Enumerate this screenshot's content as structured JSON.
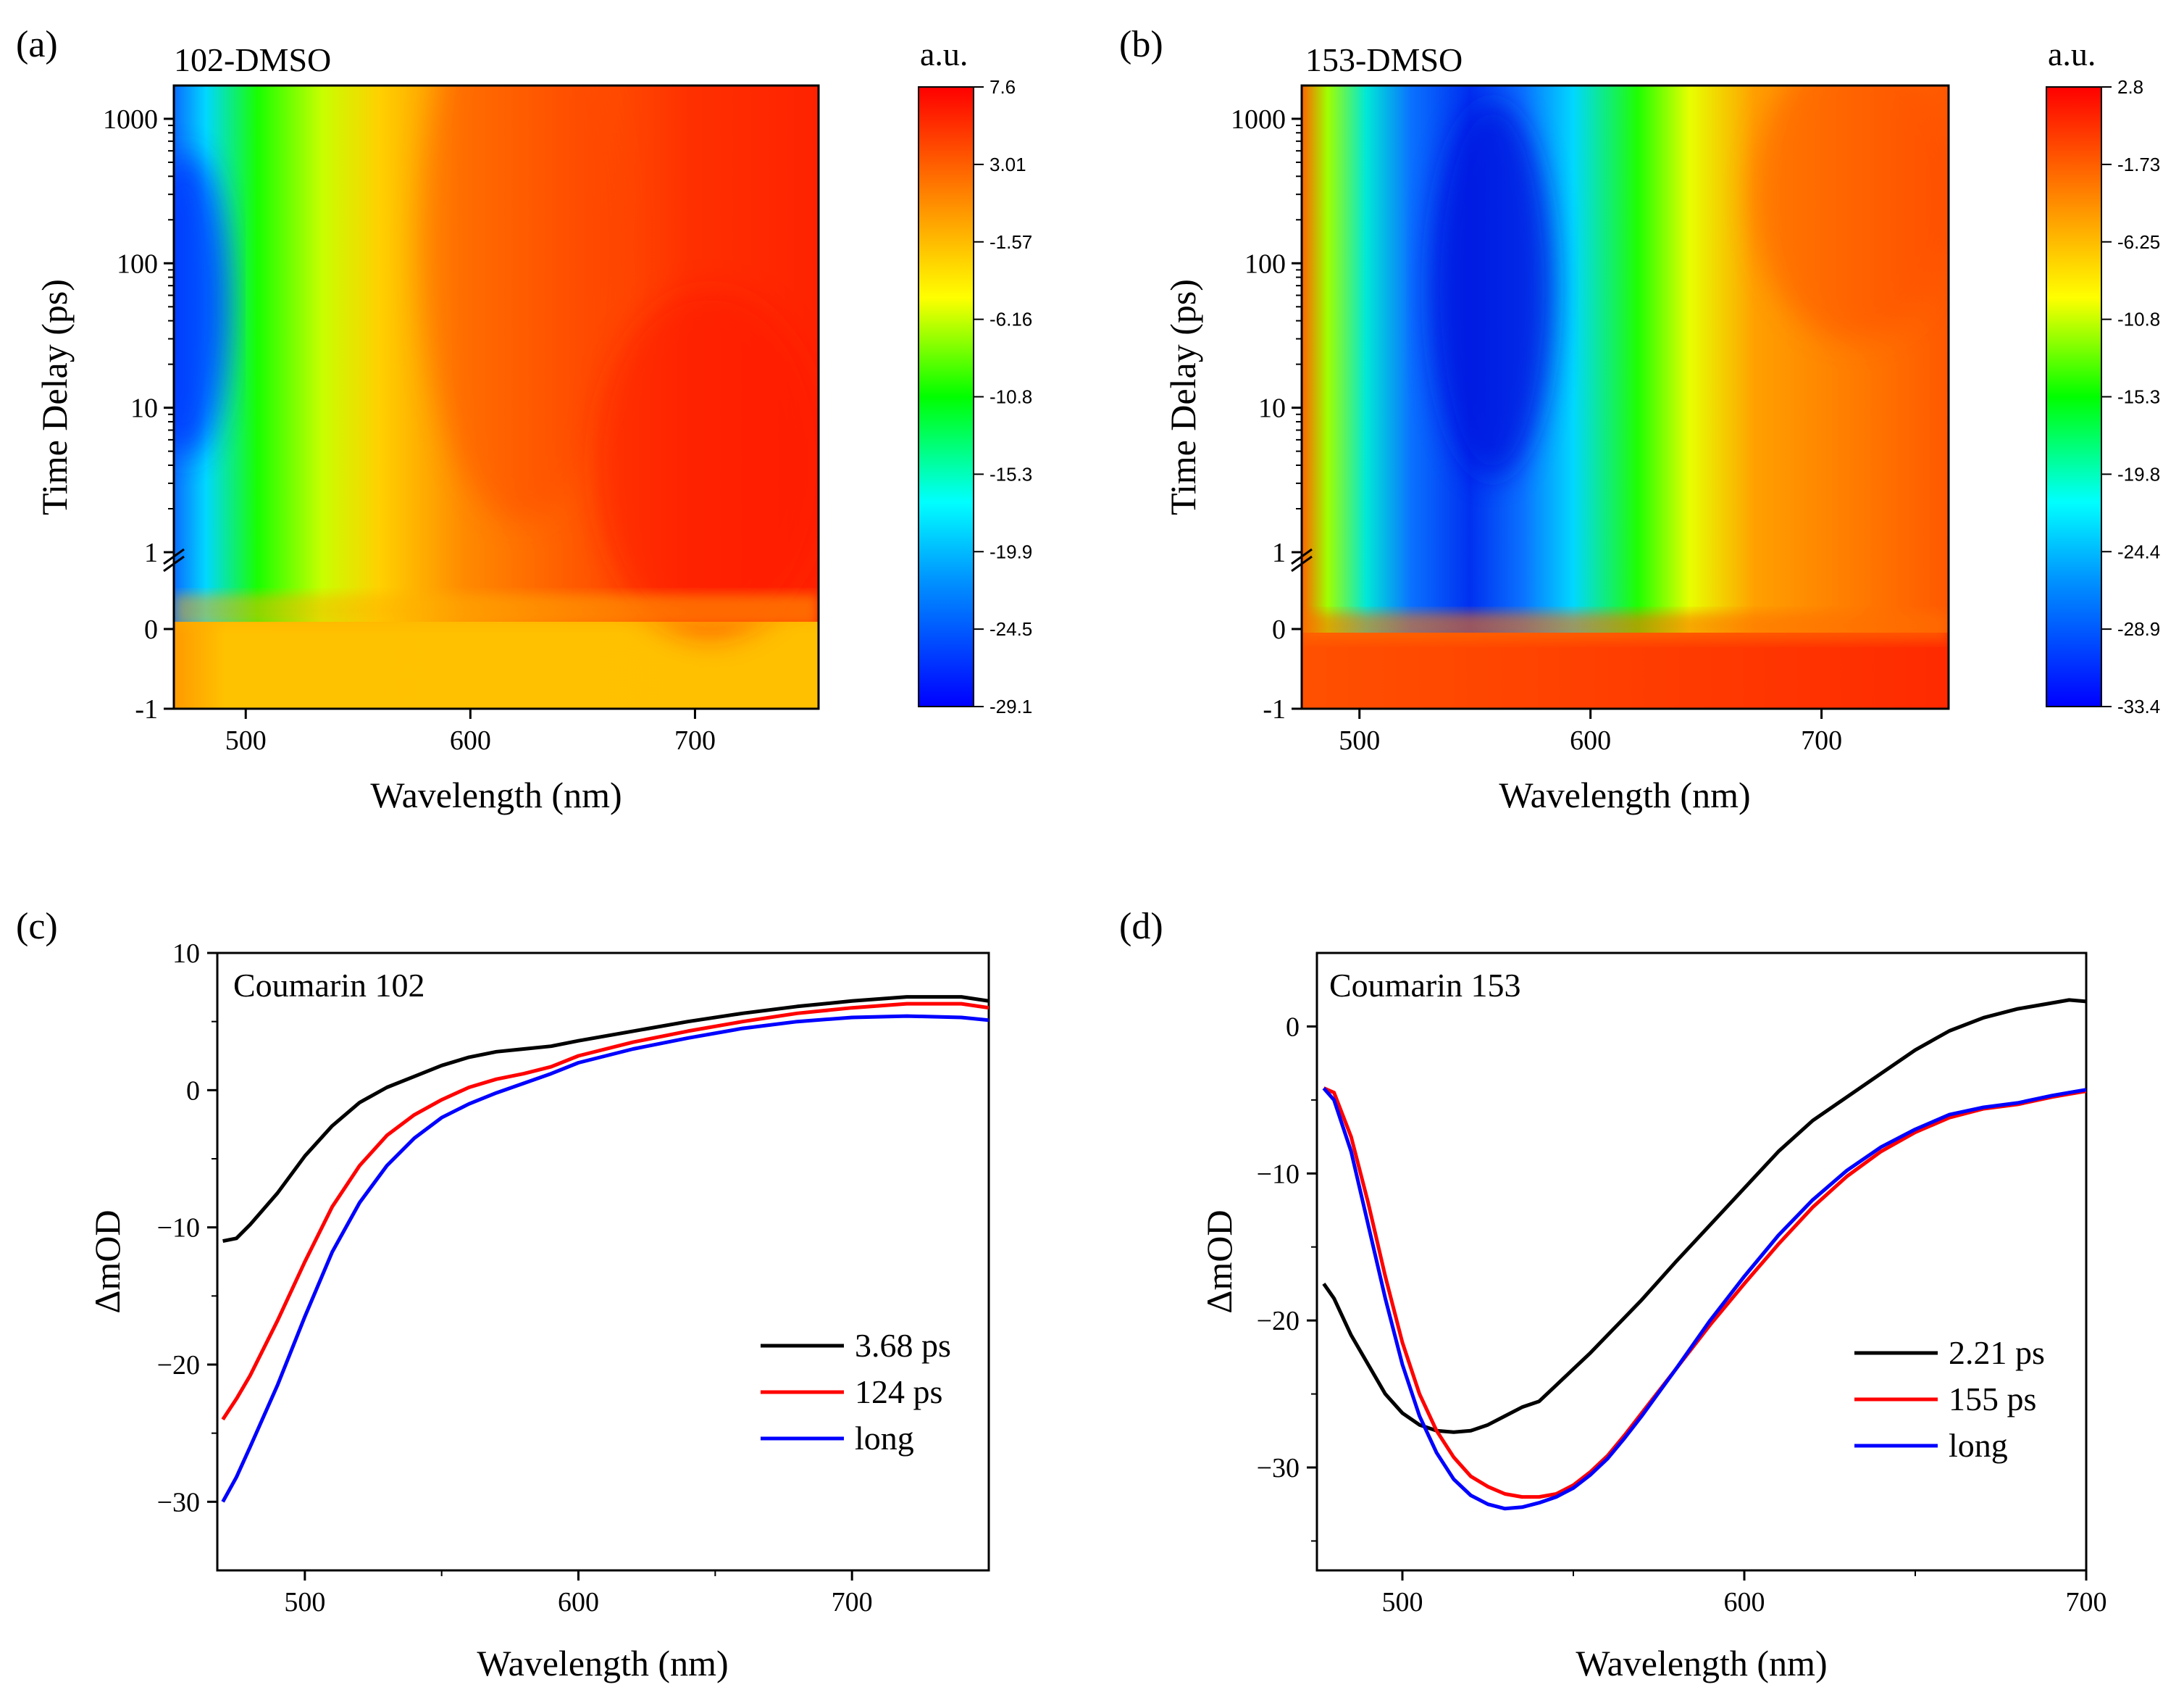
{
  "figure": {
    "panels": [
      {
        "id": "a",
        "label": "(a)"
      },
      {
        "id": "b",
        "label": "(b)"
      },
      {
        "id": "c",
        "label": "(c)"
      },
      {
        "id": "d",
        "label": "(d)"
      }
    ]
  },
  "colors": {
    "black": "#000000",
    "red": "#ff0000",
    "blue": "#0000ff",
    "colormap": [
      "#0000ff",
      "#007fff",
      "#00ffff",
      "#00ff00",
      "#ffff00",
      "#ff7f00",
      "#ff0000"
    ]
  },
  "chart_data": [
    {
      "type": "heatmap",
      "panel": "(a)",
      "title": "102-DMSO",
      "xlabel": "Wavelength (nm)",
      "ylabel": "Time Delay (ps)",
      "xlim": [
        468,
        755
      ],
      "xticks": [
        "500",
        "600",
        "700"
      ],
      "yticks": [
        "-1",
        "0",
        "1",
        "10",
        "100",
        "1000"
      ],
      "yscale": "linear from -1 to 1, log above 1",
      "colorbar_title": "a.u.",
      "colorbar_ticks": [
        "7.6",
        "3.01",
        "-1.57",
        "-6.16",
        "-10.8",
        "-15.3",
        "-19.9",
        "-24.5",
        "-29.1"
      ],
      "zlim": [
        -29.1,
        7.6
      ]
    },
    {
      "type": "heatmap",
      "panel": "(b)",
      "title": "153-DMSO",
      "xlabel": "Wavelength (nm)",
      "ylabel": "Time Delay (ps)",
      "xlim": [
        475,
        755
      ],
      "xticks": [
        "500",
        "600",
        "700"
      ],
      "yticks": [
        "-1",
        "0",
        "1",
        "10",
        "100",
        "1000"
      ],
      "yscale": "linear from -1 to 1, log above 1",
      "colorbar_title": "a.u.",
      "colorbar_ticks": [
        "2.8",
        "-1.73",
        "-6.25",
        "-10.8",
        "-15.3",
        "-19.8",
        "-24.4",
        "-28.9",
        "-33.4"
      ],
      "zlim": [
        -33.4,
        2.8
      ]
    },
    {
      "type": "line",
      "panel": "(c)",
      "title": "Coumarin 102",
      "xlabel": "Wavelength (nm)",
      "ylabel": "ΔmOD",
      "xlim": [
        468,
        750
      ],
      "ylim": [
        -35,
        10
      ],
      "xticks": [
        "500",
        "600",
        "700"
      ],
      "yticks": [
        "10",
        "0",
        "−10",
        "−20",
        "−30"
      ],
      "legend_position": "lower-right",
      "x": [
        470,
        475,
        480,
        490,
        500,
        510,
        520,
        530,
        540,
        550,
        560,
        570,
        580,
        590,
        600,
        620,
        640,
        660,
        680,
        700,
        720,
        740,
        750
      ],
      "series": [
        {
          "name": "3.68 ps",
          "color": "#000000",
          "values": [
            -11,
            -10.8,
            -9.8,
            -7.5,
            -4.8,
            -2.6,
            -0.9,
            0.2,
            1.0,
            1.8,
            2.4,
            2.8,
            3.0,
            3.2,
            3.6,
            4.3,
            5.0,
            5.6,
            6.1,
            6.5,
            6.8,
            6.8,
            6.5
          ]
        },
        {
          "name": "124 ps",
          "color": "#ff0000",
          "values": [
            -24,
            -22.5,
            -20.8,
            -16.8,
            -12.5,
            -8.5,
            -5.5,
            -3.3,
            -1.8,
            -0.7,
            0.2,
            0.8,
            1.2,
            1.7,
            2.5,
            3.5,
            4.3,
            5.0,
            5.6,
            6.0,
            6.3,
            6.3,
            6.0
          ]
        },
        {
          "name": "long",
          "color": "#0000ff",
          "values": [
            -30,
            -28.2,
            -26.0,
            -21.5,
            -16.5,
            -11.8,
            -8.2,
            -5.5,
            -3.5,
            -2.0,
            -1.0,
            -0.2,
            0.5,
            1.2,
            2.0,
            3.0,
            3.8,
            4.5,
            5.0,
            5.3,
            5.4,
            5.3,
            5.1
          ]
        }
      ]
    },
    {
      "type": "line",
      "panel": "(d)",
      "title": "Coumarin 153",
      "xlabel": "Wavelength (nm)",
      "ylabel": "ΔmOD",
      "xlim": [
        475,
        700
      ],
      "ylim": [
        -37,
        5
      ],
      "xticks": [
        "500",
        "600",
        "700"
      ],
      "yticks": [
        "0",
        "−10",
        "−20",
        "−30"
      ],
      "legend_position": "lower-right",
      "x": [
        477,
        480,
        485,
        490,
        495,
        500,
        505,
        510,
        515,
        520,
        525,
        530,
        535,
        540,
        545,
        550,
        555,
        560,
        565,
        570,
        580,
        590,
        600,
        610,
        620,
        630,
        640,
        650,
        660,
        670,
        680,
        690,
        695,
        700
      ],
      "series": [
        {
          "name": "2.21 ps",
          "color": "#000000",
          "values": [
            -17.5,
            -18.5,
            -21,
            -23,
            -25,
            -26.3,
            -27.1,
            -27.5,
            -27.6,
            -27.5,
            -27.1,
            -26.5,
            -25.9,
            -25.5,
            -24.4,
            -23.3,
            -22.2,
            -21.0,
            -19.8,
            -18.6,
            -16.0,
            -13.5,
            -11.0,
            -8.5,
            -6.4,
            -4.8,
            -3.2,
            -1.6,
            -0.3,
            0.6,
            1.2,
            1.6,
            1.8,
            1.7
          ]
        },
        {
          "name": "155 ps",
          "color": "#ff0000",
          "values": [
            -4.2,
            -4.5,
            -7.5,
            -12,
            -17,
            -21.5,
            -25.0,
            -27.5,
            -29.3,
            -30.6,
            -31.3,
            -31.8,
            -32.0,
            -32.0,
            -31.8,
            -31.2,
            -30.3,
            -29.2,
            -27.8,
            -26.3,
            -23.3,
            -20.3,
            -17.5,
            -14.8,
            -12.3,
            -10.2,
            -8.5,
            -7.2,
            -6.2,
            -5.6,
            -5.3,
            -4.8,
            -4.6,
            -4.4
          ]
        },
        {
          "name": "long",
          "color": "#0000ff",
          "values": [
            -4.2,
            -5.0,
            -8.5,
            -13.5,
            -18.5,
            -23,
            -26.5,
            -29.0,
            -30.8,
            -31.9,
            -32.5,
            -32.8,
            -32.7,
            -32.4,
            -32.0,
            -31.4,
            -30.5,
            -29.4,
            -28.0,
            -26.5,
            -23.3,
            -20.0,
            -17.0,
            -14.2,
            -11.8,
            -9.8,
            -8.2,
            -7.0,
            -6.0,
            -5.5,
            -5.2,
            -4.7,
            -4.5,
            -4.3
          ]
        }
      ]
    }
  ]
}
